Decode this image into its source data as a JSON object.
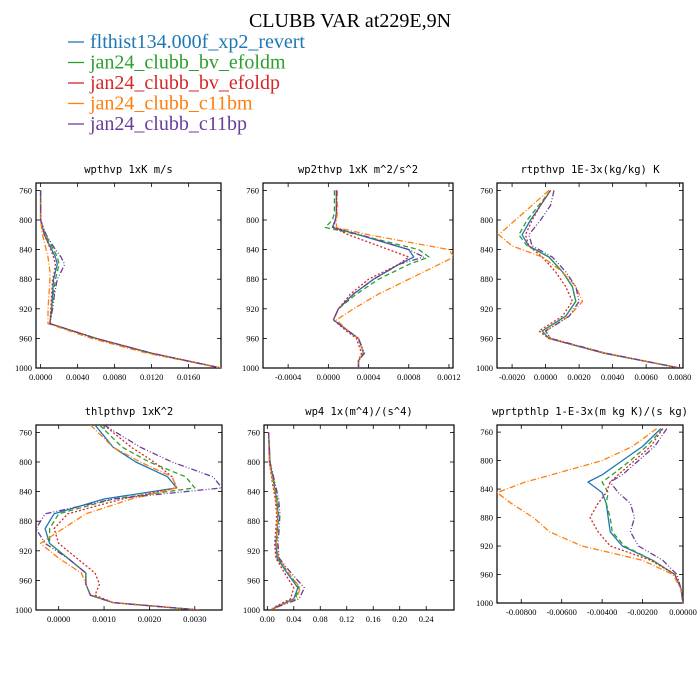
{
  "title": "CLUBB VAR at229E,9N",
  "legend": [
    {
      "label": "flthist134.000f_xp2_revert",
      "color": "#1f77b4",
      "dash": "none"
    },
    {
      "label": "jan24_clubb_bv_efoldm",
      "color": "#2ca02c",
      "dash": "5,3"
    },
    {
      "label": "jan24_clubb_bv_efoldp",
      "color": "#d62728",
      "dash": "2,2"
    },
    {
      "label": "jan24_clubb_c11bm",
      "color": "#ff7f0e",
      "dash": "6,2,1,2"
    },
    {
      "label": "jan24_clubb_c11bp",
      "color": "#6a3d9a",
      "dash": "6,2,1,2,1,2"
    }
  ],
  "chart_data": [
    {
      "type": "line",
      "title": "wpthvp 1xK m/s",
      "xlim": [
        -0.0005,
        0.0195
      ],
      "ylim": [
        1000,
        750
      ],
      "xticks": [
        "0.0000",
        "0.0040",
        "0.0080",
        "0.0120",
        "0.0160"
      ],
      "xtick_values": [
        0,
        0.004,
        0.008,
        0.012,
        0.016
      ],
      "yticks": [
        "760",
        "800",
        "840",
        "880",
        "920",
        "960",
        "1000"
      ],
      "ytick_values": [
        760,
        800,
        840,
        880,
        920,
        960,
        1000
      ],
      "y": [
        760,
        800,
        820,
        840,
        850,
        860,
        870,
        880,
        900,
        920,
        940,
        960,
        980,
        1000
      ],
      "series": [
        {
          "values": [
            0,
            0,
            0.0004,
            0.0012,
            0.0016,
            0.0018,
            0.0016,
            0.0014,
            0.0013,
            0.0012,
            0.001,
            0.006,
            0.012,
            0.0195
          ]
        },
        {
          "values": [
            0,
            0,
            0.0005,
            0.0014,
            0.0018,
            0.002,
            0.0018,
            0.0016,
            0.0014,
            0.0012,
            0.001,
            0.006,
            0.012,
            0.0195
          ]
        },
        {
          "values": [
            0,
            0,
            0.0004,
            0.0011,
            0.0014,
            0.0016,
            0.0015,
            0.0013,
            0.0012,
            0.0011,
            0.001,
            0.006,
            0.012,
            0.0195
          ]
        },
        {
          "values": [
            0,
            0,
            0.0002,
            0.0006,
            0.0008,
            0.0009,
            0.001,
            0.001,
            0.0009,
            0.0008,
            0.0008,
            0.0055,
            0.0115,
            0.0195
          ]
        },
        {
          "values": [
            0,
            0,
            0.0006,
            0.0016,
            0.0022,
            0.0026,
            0.0022,
            0.0018,
            0.0015,
            0.0013,
            0.001,
            0.006,
            0.012,
            0.0195
          ]
        }
      ]
    },
    {
      "type": "line",
      "title": "wp2thvp 1xK m^2/s^2",
      "xlim": [
        -0.00065,
        0.00124
      ],
      "ylim": [
        1000,
        750
      ],
      "xticks": [
        "-0.0004",
        "0.0000",
        "0.0004",
        "0.0008",
        "0.0012"
      ],
      "xtick_values": [
        -0.0004,
        0,
        0.0004,
        0.0008,
        0.0012
      ],
      "yticks": [
        "760",
        "800",
        "840",
        "880",
        "920",
        "960",
        "1000"
      ],
      "ytick_values": [
        760,
        800,
        840,
        880,
        920,
        960,
        1000
      ],
      "y": [
        760,
        790,
        800,
        810,
        820,
        840,
        850,
        860,
        880,
        900,
        920,
        935,
        950,
        960,
        980,
        990,
        1000
      ],
      "series": [
        {
          "values": [
            8e-05,
            8e-05,
            7e-05,
            4e-05,
            0.0003,
            0.0008,
            0.00085,
            0.0007,
            0.00045,
            0.00025,
            0.0001,
            5e-05,
            0.0002,
            0.0003,
            0.00035,
            0.0003,
            0.0003
          ]
        },
        {
          "values": [
            6e-05,
            6e-05,
            4e-05,
            -3e-05,
            0.0003,
            0.0009,
            0.001,
            0.0008,
            0.0005,
            0.00028,
            0.0001,
            5e-05,
            0.0002,
            0.0003,
            0.00035,
            0.0003,
            0.0003
          ]
        },
        {
          "values": [
            8e-05,
            8e-05,
            7e-05,
            5e-05,
            0.0002,
            0.0006,
            0.0008,
            0.0007,
            0.0004,
            0.00022,
            0.0001,
            5e-05,
            0.00018,
            0.00028,
            0.00033,
            0.0003,
            0.0003
          ]
        },
        {
          "values": [
            9e-05,
            9e-05,
            8e-05,
            8e-05,
            0.0004,
            0.0012,
            0.00125,
            0.0011,
            0.0008,
            0.0005,
            0.00025,
            8e-05,
            0.0002,
            0.0003,
            0.00035,
            0.0003,
            0.0003
          ]
        },
        {
          "values": [
            8e-05,
            8e-05,
            7e-05,
            4e-05,
            0.00032,
            0.0008,
            0.00095,
            0.0007,
            0.00045,
            0.00025,
            0.0001,
            5e-05,
            0.0002,
            0.0003,
            0.00036,
            0.0003,
            0.0003
          ]
        }
      ]
    },
    {
      "type": "line",
      "title": "rtpthvp 1E-3x(kg/kg) K",
      "xlim": [
        -0.0029,
        0.0082
      ],
      "ylim": [
        1000,
        750
      ],
      "xticks": [
        "-0.0020",
        "0.0000",
        "0.0020",
        "0.0040",
        "0.0060",
        "0.0080"
      ],
      "xtick_values": [
        -0.002,
        0,
        0.002,
        0.004,
        0.006,
        0.008
      ],
      "yticks": [
        "760",
        "800",
        "840",
        "880",
        "920",
        "960",
        "1000"
      ],
      "ytick_values": [
        760,
        800,
        840,
        880,
        920,
        960,
        1000
      ],
      "y": [
        760,
        780,
        800,
        820,
        835,
        850,
        870,
        890,
        910,
        930,
        950,
        960,
        980,
        1000
      ],
      "series": [
        {
          "values": [
            0.0003,
            -0.0003,
            -0.0009,
            -0.0014,
            -0.001,
            0.0002,
            0.001,
            0.0016,
            0.0018,
            0.0012,
            -0.0002,
            0.0002,
            0.0035,
            0.008
          ]
        },
        {
          "values": [
            0.0003,
            -0.0004,
            -0.0011,
            -0.0016,
            -0.0011,
            0.0002,
            0.001,
            0.0016,
            0.0018,
            0.0012,
            -0.0002,
            0.0002,
            0.0035,
            0.008
          ]
        },
        {
          "values": [
            0.0003,
            -0.0003,
            -0.0008,
            -0.0012,
            -0.001,
            -0.0002,
            0.0006,
            0.0012,
            0.0016,
            0.001,
            -0.0004,
            0.0002,
            0.0035,
            0.008
          ]
        },
        {
          "values": [
            0.0002,
            -0.0008,
            -0.0018,
            -0.0028,
            -0.002,
            -0.0002,
            0.001,
            0.0018,
            0.0022,
            0.0014,
            0.0,
            0.0003,
            0.0036,
            0.008
          ]
        },
        {
          "values": [
            0.0005,
            0.0003,
            -0.0003,
            -0.001,
            -0.0008,
            0.0004,
            0.0012,
            0.0018,
            0.002,
            0.0014,
            0.0,
            0.0003,
            0.0036,
            0.008
          ]
        }
      ]
    },
    {
      "type": "line",
      "title": "thlpthvp 1xK^2",
      "xlim": [
        -0.0005,
        0.0036
      ],
      "ylim": [
        1000,
        750
      ],
      "xticks": [
        "0.0000",
        "0.0010",
        "0.0020",
        "0.0030"
      ],
      "xtick_values": [
        0,
        0.001,
        0.002,
        0.003
      ],
      "yticks": [
        "760",
        "800",
        "840",
        "880",
        "920",
        "960",
        "1000"
      ],
      "ytick_values": [
        760,
        800,
        840,
        880,
        920,
        960,
        1000
      ],
      "y": [
        750,
        780,
        800,
        820,
        835,
        850,
        870,
        890,
        910,
        930,
        950,
        965,
        980,
        990,
        1000
      ],
      "series": [
        {
          "values": [
            0.0008,
            0.0012,
            0.0017,
            0.0024,
            0.0026,
            0.001,
            -0.0001,
            -0.0003,
            -0.0002,
            0.0002,
            0.0006,
            0.0006,
            0.0007,
            0.0012,
            0.0031
          ]
        },
        {
          "values": [
            0.0009,
            0.0014,
            0.002,
            0.0028,
            0.003,
            0.0012,
            0.0,
            -0.0002,
            -0.0002,
            0.0002,
            0.0006,
            0.0006,
            0.0007,
            0.0012,
            0.0031
          ]
        },
        {
          "values": [
            0.001,
            0.0016,
            0.0021,
            0.0025,
            0.0026,
            0.0014,
            0.0002,
            -0.0001,
            0.0,
            0.0004,
            0.0008,
            0.0009,
            0.0008,
            0.0012,
            0.0031
          ]
        },
        {
          "values": [
            0.0007,
            0.0012,
            0.0018,
            0.0025,
            0.0026,
            0.0016,
            0.0006,
            0.0001,
            -0.0004,
            0.0,
            0.0005,
            0.0006,
            0.0007,
            0.0012,
            0.0031
          ]
        },
        {
          "values": [
            0.001,
            0.0018,
            0.0025,
            0.0034,
            0.0036,
            0.0012,
            -0.0003,
            -0.0005,
            -0.0003,
            0.0002,
            0.0006,
            0.0006,
            0.0007,
            0.0012,
            0.0031
          ]
        }
      ]
    },
    {
      "type": "line",
      "title": "wp4 1x(m^4)/(s^4)",
      "xlim": [
        -0.005,
        0.282
      ],
      "ylim": [
        1000,
        750
      ],
      "xticks": [
        "0.00",
        "0.04",
        "0.08",
        "0.12",
        "0.16",
        "0.20",
        "0.24"
      ],
      "xtick_values": [
        0,
        0.04,
        0.08,
        0.12,
        0.16,
        0.2,
        0.24
      ],
      "yticks": [
        "760",
        "800",
        "840",
        "880",
        "920",
        "960",
        "1000"
      ],
      "ytick_values": [
        760,
        800,
        840,
        880,
        920,
        960,
        1000
      ],
      "y": [
        760,
        800,
        830,
        850,
        870,
        890,
        910,
        930,
        950,
        970,
        985,
        995,
        1000
      ],
      "series": [
        {
          "values": [
            0.002,
            0.004,
            0.01,
            0.014,
            0.016,
            0.015,
            0.013,
            0.015,
            0.03,
            0.046,
            0.04,
            0.015,
            0.005
          ]
        },
        {
          "values": [
            0.002,
            0.004,
            0.011,
            0.015,
            0.017,
            0.016,
            0.014,
            0.016,
            0.032,
            0.048,
            0.042,
            0.016,
            0.005
          ]
        },
        {
          "values": [
            0.002,
            0.003,
            0.008,
            0.012,
            0.014,
            0.013,
            0.011,
            0.013,
            0.026,
            0.04,
            0.035,
            0.013,
            0.005
          ]
        },
        {
          "values": [
            0.002,
            0.003,
            0.009,
            0.013,
            0.015,
            0.015,
            0.014,
            0.017,
            0.032,
            0.05,
            0.044,
            0.016,
            0.005
          ]
        },
        {
          "values": [
            0.002,
            0.004,
            0.012,
            0.017,
            0.019,
            0.018,
            0.016,
            0.018,
            0.036,
            0.056,
            0.048,
            0.018,
            0.005
          ]
        }
      ]
    },
    {
      "type": "line",
      "title": "wprtpthlp 1-E-3x(m kg K)/(s kg)",
      "xlim": [
        -0.0092,
        0.0
      ],
      "ylim": [
        1000,
        750
      ],
      "xticks": [
        "-0.00800",
        "-0.00600",
        "-0.00400",
        "-0.00200",
        "0.00000"
      ],
      "xtick_values": [
        -0.008,
        -0.006,
        -0.004,
        -0.002,
        0
      ],
      "yticks": [
        "760",
        "800",
        "840",
        "880",
        "920",
        "960",
        "1000"
      ],
      "ytick_values": [
        760,
        800,
        840,
        880,
        920,
        960,
        1000
      ],
      "y": [
        755,
        780,
        800,
        820,
        830,
        845,
        860,
        880,
        900,
        920,
        940,
        960,
        980,
        1000
      ],
      "series": [
        {
          "values": [
            -0.0011,
            -0.002,
            -0.003,
            -0.004,
            -0.0047,
            -0.004,
            -0.0038,
            -0.0037,
            -0.0036,
            -0.003,
            -0.0015,
            -0.0004,
            -0.0001,
            0
          ]
        },
        {
          "values": [
            -0.001,
            -0.0018,
            -0.0026,
            -0.0035,
            -0.004,
            -0.0037,
            -0.0038,
            -0.0036,
            -0.0035,
            -0.0029,
            -0.0015,
            -0.0004,
            -0.0001,
            0
          ]
        },
        {
          "values": [
            -0.001,
            -0.0016,
            -0.0024,
            -0.0032,
            -0.0036,
            -0.0038,
            -0.0042,
            -0.0046,
            -0.0042,
            -0.0036,
            -0.0016,
            -0.0004,
            -0.0001,
            0
          ]
        },
        {
          "values": [
            -0.0013,
            -0.0025,
            -0.004,
            -0.0065,
            -0.0078,
            -0.0092,
            -0.0085,
            -0.0074,
            -0.0066,
            -0.005,
            -0.002,
            -0.0005,
            -0.0001,
            0
          ]
        },
        {
          "values": [
            -0.0008,
            -0.0014,
            -0.0022,
            -0.003,
            -0.0036,
            -0.0032,
            -0.0026,
            -0.0024,
            -0.0026,
            -0.0022,
            -0.001,
            -0.0003,
            -0.0001,
            0
          ]
        }
      ]
    }
  ]
}
